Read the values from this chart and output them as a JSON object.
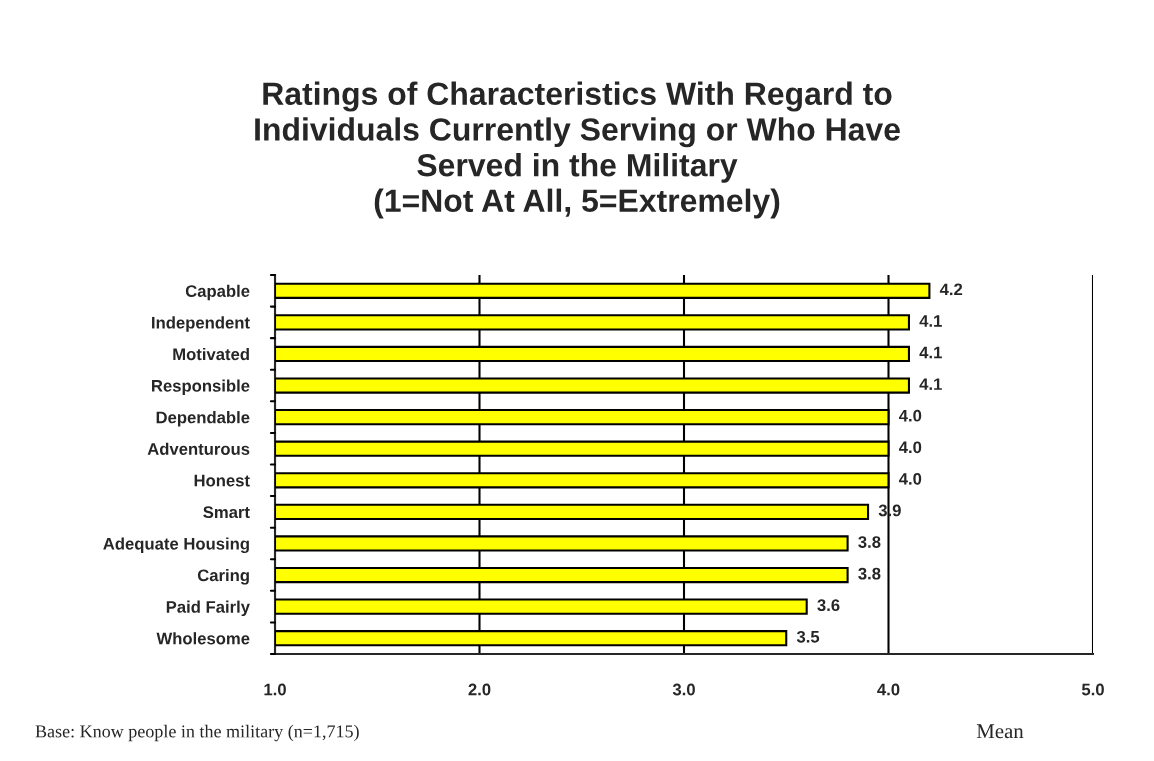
{
  "chart_data": {
    "type": "bar",
    "orientation": "horizontal",
    "title": "Ratings of Characteristics With Regard to\nIndividuals Currently Serving or Who Have\nServed in the Military\n(1=Not At All, 5=Extremely)",
    "xlabel": "Mean",
    "annotations": [
      "Base: Know people in the military (n=1,715)"
    ],
    "categories": [
      "Capable",
      "Independent",
      "Motivated",
      "Responsible",
      "Dependable",
      "Adventurous",
      "Honest",
      "Smart",
      "Adequate Housing",
      "Caring",
      "Paid Fairly",
      "Wholesome"
    ],
    "values": [
      4.2,
      4.1,
      4.1,
      4.1,
      4.0,
      4.0,
      4.0,
      3.9,
      3.8,
      3.8,
      3.6,
      3.5
    ],
    "value_labels": [
      "4.2",
      "4.1",
      "4.1",
      "4.1",
      "4.0",
      "4.0",
      "4.0",
      "3.9",
      "3.8",
      "3.8",
      "3.6",
      "3.5"
    ],
    "color": "#ffff00",
    "xlim": [
      1.0,
      5.0
    ],
    "xticks": [
      {
        "value": 1,
        "label": "1.0"
      },
      {
        "value": 2,
        "label": "2.0"
      },
      {
        "value": 3,
        "label": "3.0"
      },
      {
        "value": 4,
        "label": "4.0"
      },
      {
        "value": 5,
        "label": "5.0"
      }
    ],
    "grid": "x",
    "legend": false
  }
}
